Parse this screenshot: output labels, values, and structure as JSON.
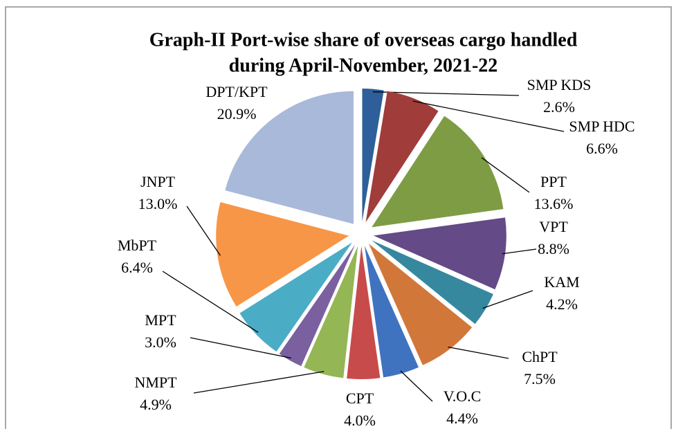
{
  "chart_data": {
    "type": "pie",
    "title": "Graph-II Port-wise share of  overseas cargo handled during April-November, 2021-22",
    "categories": [
      "SMP KDS",
      "SMP HDC",
      "PPT",
      "VPT",
      "KAM",
      "ChPT",
      "V.O.C",
      "CPT",
      "NMPT",
      "MPT",
      "MbPT",
      "JNPT",
      "DPT/KPT"
    ],
    "values": [
      2.6,
      6.6,
      13.6,
      8.8,
      4.2,
      7.5,
      4.4,
      4.0,
      4.9,
      3.0,
      6.4,
      13.0,
      20.9
    ],
    "value_labels": [
      "2.6%",
      "6.6%",
      "13.6%",
      "8.8%",
      "4.2%",
      "7.5%",
      "4.4%",
      "4.0%",
      "4.9%",
      "3.0%",
      "6.4%",
      "13.0%",
      "20.9%"
    ],
    "colors": [
      "#2e5f9a",
      "#a03c3a",
      "#7d9c44",
      "#644a87",
      "#36889f",
      "#d1773a",
      "#3f73bf",
      "#c84b4b",
      "#94b654",
      "#7b60a0",
      "#4bacc6",
      "#f79646",
      "#a9b9d9"
    ]
  }
}
